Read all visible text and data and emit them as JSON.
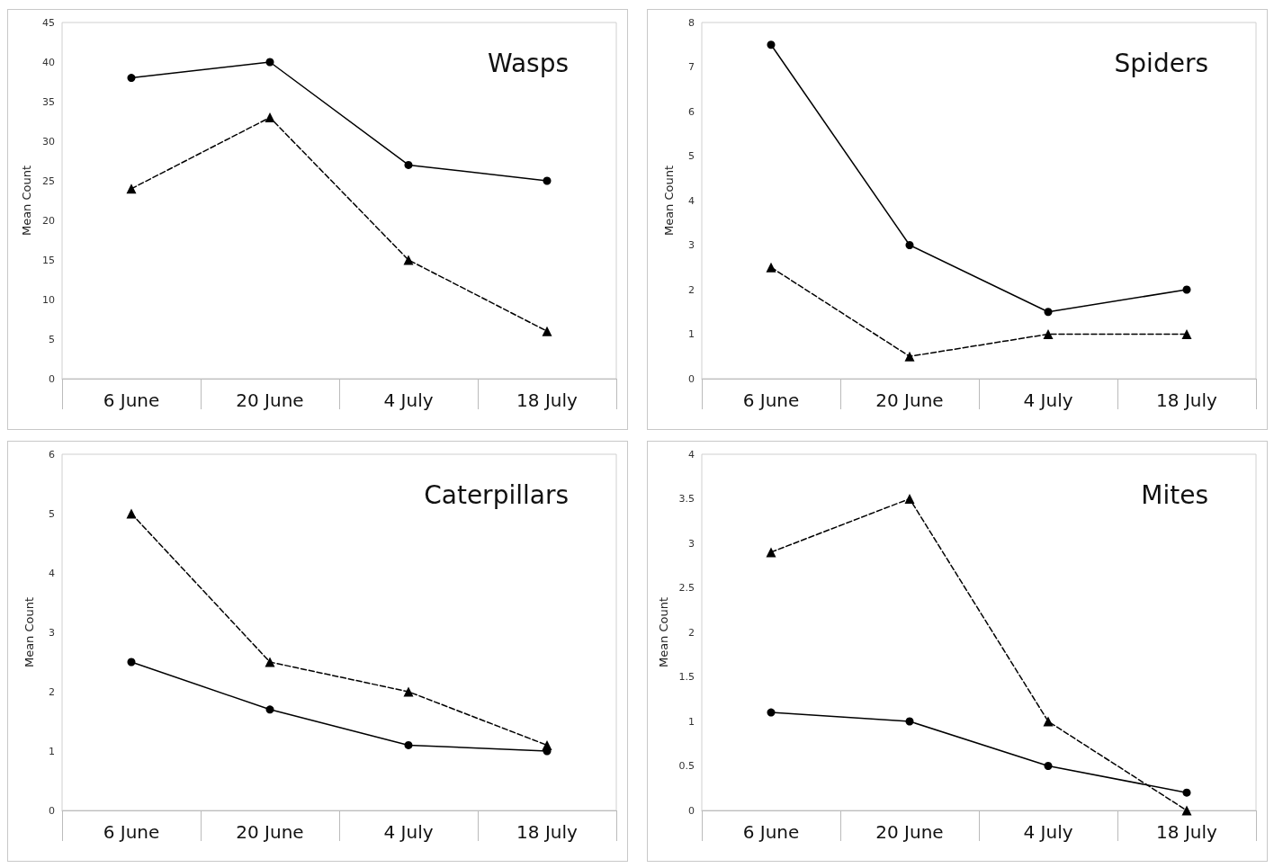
{
  "chart_data": [
    {
      "type": "line",
      "title": "Wasps",
      "ylabel": "Mean Count",
      "categories": [
        "6 June",
        "20 June",
        "4 July",
        "18 July"
      ],
      "ylim": [
        0,
        45
      ],
      "yticks": [
        0,
        5,
        10,
        15,
        20,
        25,
        30,
        35,
        40,
        45
      ],
      "series": [
        {
          "color": "#000000",
          "marker": "circle",
          "line_style": "solid",
          "values": [
            38,
            40,
            27,
            25
          ]
        },
        {
          "color": "#000000",
          "marker": "triangle",
          "line_style": "dashed",
          "values": [
            24,
            33,
            15,
            6
          ]
        }
      ]
    },
    {
      "type": "line",
      "title": "Spiders",
      "ylabel": "Mean Count",
      "categories": [
        "6 June",
        "20 June",
        "4 July",
        "18 July"
      ],
      "ylim": [
        0,
        8
      ],
      "yticks": [
        0,
        1,
        2,
        3,
        4,
        5,
        6,
        7,
        8
      ],
      "series": [
        {
          "color": "#000000",
          "marker": "circle",
          "line_style": "solid",
          "values": [
            7.5,
            3,
            1.5,
            2
          ]
        },
        {
          "color": "#000000",
          "marker": "triangle",
          "line_style": "dashed",
          "values": [
            2.5,
            0.5,
            1,
            1
          ]
        }
      ]
    },
    {
      "type": "line",
      "title": "Caterpillars",
      "ylabel": "Mean Count",
      "categories": [
        "6 June",
        "20 June",
        "4 July",
        "18 July"
      ],
      "ylim": [
        0,
        6
      ],
      "yticks": [
        0,
        1,
        2,
        3,
        4,
        5,
        6
      ],
      "series": [
        {
          "color": "#000000",
          "marker": "circle",
          "line_style": "solid",
          "values": [
            2.5,
            1.7,
            1.1,
            1.0
          ]
        },
        {
          "color": "#000000",
          "marker": "triangle",
          "line_style": "dashed",
          "values": [
            5,
            2.5,
            2,
            1.1
          ]
        }
      ]
    },
    {
      "type": "line",
      "title": "Mites",
      "ylabel": "Mean Count",
      "categories": [
        "6 June",
        "20 June",
        "4 July",
        "18 July"
      ],
      "ylim": [
        0,
        4
      ],
      "yticks": [
        0,
        0.5,
        1,
        1.5,
        2,
        2.5,
        3,
        3.5,
        4
      ],
      "series": [
        {
          "color": "#000000",
          "marker": "circle",
          "line_style": "solid",
          "values": [
            1.1,
            1.0,
            0.5,
            0.2
          ]
        },
        {
          "color": "#000000",
          "marker": "triangle",
          "line_style": "dashed",
          "values": [
            2.9,
            3.5,
            1,
            0
          ]
        }
      ]
    }
  ]
}
